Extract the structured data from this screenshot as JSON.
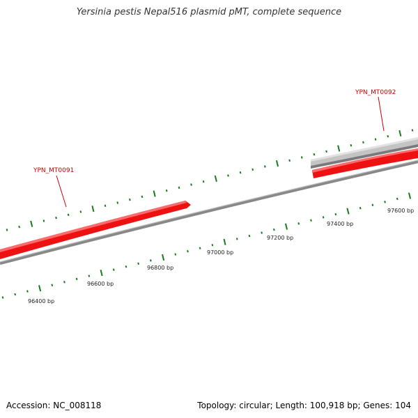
{
  "title": "Yersinia pestis Nepal516 plasmid pMT, complete sequence",
  "footer": {
    "accession": "Accession: NC_008118",
    "summary": "Topology: circular; Length: 100,918 bp; Genes: 104"
  },
  "genes": [
    {
      "label": "YPN_MT0091",
      "strand": "forward",
      "color": "#ee0000"
    },
    {
      "label": "YPN_MT0092",
      "strand": "forward",
      "color": "#ee0000"
    },
    {
      "label": "",
      "strand": "reverse",
      "color": "#c0c0c0"
    }
  ],
  "ruler": {
    "ticks": [
      "96400 bp",
      "96600 bp",
      "96800 bp",
      "97000 bp",
      "97200 bp",
      "97400 bp",
      "97600 bp"
    ]
  },
  "colors": {
    "backbone": "#888888",
    "forward_gene": "#ee0000",
    "reverse_gene": "#c0c0c0",
    "ticks": "#1a7a1a",
    "label": "#cc0000"
  }
}
